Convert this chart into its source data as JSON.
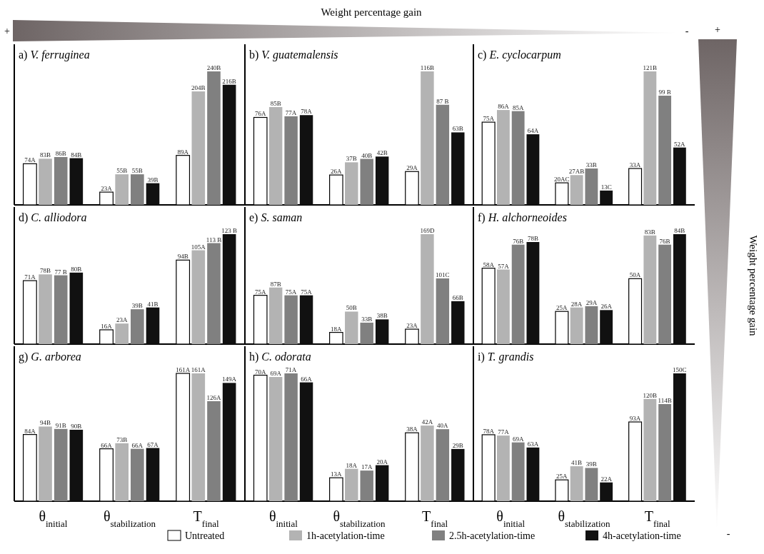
{
  "chart_data": [
    {
      "type": "bar",
      "title": "a) V. ferruginea",
      "categories": [
        null,
        null,
        null
      ],
      "tick_labels": false,
      "legend": "bottom",
      "annotations": [
        "+",
        "Weight percentage gain",
        "-",
        "+",
        "Weight percentage gain",
        "-"
      ],
      "series": [
        {
          "name": "Untreated",
          "color": "#ffffff",
          "values": [
            74,
            23,
            89
          ],
          "value_labels": [
            "74A",
            "23A",
            "89A"
          ]
        },
        {
          "name": "1h-acetylation-time",
          "color": "#b3b3b3",
          "values": [
            83,
            55,
            204
          ],
          "value_labels": [
            "83B",
            "55B",
            "204B"
          ]
        },
        {
          "name": "2.5h-acetylation-time",
          "color": "#808080",
          "values": [
            86,
            55,
            240
          ],
          "value_labels": [
            "86B",
            "55B",
            "240B"
          ]
        },
        {
          "name": "4h-acetylation-time",
          "color": "#111111",
          "values": [
            84,
            39,
            216
          ],
          "value_labels": [
            "84B",
            "39B",
            "216B"
          ]
        }
      ]
    },
    {
      "type": "bar",
      "title": "b) V. guatemalensis",
      "categories": [
        null,
        null,
        null
      ],
      "tick_labels": false,
      "series": [
        {
          "color": "#ffffff",
          "values": [
            76,
            26,
            29
          ],
          "value_labels": [
            "76A",
            "26A",
            "29A"
          ]
        },
        {
          "color": "#b3b3b3",
          "values": [
            85,
            37,
            116
          ],
          "value_labels": [
            "85B",
            "37B",
            "116B"
          ]
        },
        {
          "color": "#808080",
          "values": [
            77,
            40,
            87
          ],
          "value_labels": [
            "77A",
            "40B",
            "87 B"
          ]
        },
        {
          "color": "#111111",
          "values": [
            78,
            42,
            63
          ],
          "value_labels": [
            "78A",
            "42B",
            "63B"
          ]
        }
      ]
    },
    {
      "type": "bar",
      "title": "c) E. cyclocarpum",
      "categories": [
        null,
        null,
        null
      ],
      "tick_labels": false,
      "series": [
        {
          "color": "#ffffff",
          "values": [
            75,
            20,
            33
          ],
          "value_labels": [
            "75A",
            "20AC",
            "33A"
          ]
        },
        {
          "color": "#b3b3b3",
          "values": [
            86,
            27,
            121
          ],
          "value_labels": [
            "86A",
            "27AB",
            "121B"
          ]
        },
        {
          "color": "#808080",
          "values": [
            85,
            33,
            99
          ],
          "value_labels": [
            "85A",
            "33B",
            "99 B"
          ]
        },
        {
          "color": "#111111",
          "values": [
            64,
            13,
            52
          ],
          "value_labels": [
            "64A",
            "13C",
            "52A"
          ]
        }
      ]
    },
    {
      "type": "bar",
      "title": "d) C. alliodora",
      "categories": [
        null,
        null,
        null
      ],
      "tick_labels": false,
      "series": [
        {
          "color": "#ffffff",
          "values": [
            71,
            16,
            94
          ],
          "value_labels": [
            "71A",
            "16A",
            "94B"
          ]
        },
        {
          "color": "#b3b3b3",
          "values": [
            78,
            23,
            105
          ],
          "value_labels": [
            "78B",
            "23A",
            "105A"
          ]
        },
        {
          "color": "#808080",
          "values": [
            77,
            39,
            113
          ],
          "value_labels": [
            "77 B",
            "39B",
            "113 B"
          ]
        },
        {
          "color": "#111111",
          "values": [
            80,
            41,
            123
          ],
          "value_labels": [
            "80B",
            "41B",
            "123 B"
          ]
        }
      ]
    },
    {
      "type": "bar",
      "title": "e) S. saman",
      "categories": [
        null,
        null,
        null
      ],
      "tick_labels": false,
      "series": [
        {
          "color": "#ffffff",
          "values": [
            75,
            18,
            23
          ],
          "value_labels": [
            "75A",
            "18A",
            "23A"
          ]
        },
        {
          "color": "#b3b3b3",
          "values": [
            87,
            50,
            169
          ],
          "value_labels": [
            "87B",
            "50B",
            "169D"
          ]
        },
        {
          "color": "#808080",
          "values": [
            75,
            33,
            101
          ],
          "value_labels": [
            "75A",
            "33B",
            "101C"
          ]
        },
        {
          "color": "#111111",
          "values": [
            75,
            38,
            66
          ],
          "value_labels": [
            "75A",
            "38B",
            "66B"
          ]
        }
      ]
    },
    {
      "type": "bar",
      "title": "f) H. alchorneoides",
      "categories": [
        null,
        null,
        null
      ],
      "tick_labels": false,
      "series": [
        {
          "color": "#ffffff",
          "values": [
            58,
            25,
            50
          ],
          "value_labels": [
            "58A",
            "25A",
            "50A"
          ]
        },
        {
          "color": "#b3b3b3",
          "values": [
            57,
            28,
            83
          ],
          "value_labels": [
            "57A",
            "28A",
            "83B"
          ]
        },
        {
          "color": "#808080",
          "values": [
            76,
            29,
            76
          ],
          "value_labels": [
            "76B",
            "29A",
            "76B"
          ]
        },
        {
          "color": "#111111",
          "values": [
            78,
            26,
            84
          ],
          "value_labels": [
            "78B",
            "26A",
            "84B"
          ]
        }
      ]
    },
    {
      "type": "bar",
      "title": "g) G. arborea",
      "categories": [
        "θ$_{initial}$",
        "θ$_{stabilization}$",
        "T$_{final}$"
      ],
      "tick_labels": "x",
      "series": [
        {
          "color": "#ffffff",
          "values": [
            84,
            66,
            161
          ],
          "value_labels": [
            "84A",
            "66A",
            "161A"
          ]
        },
        {
          "color": "#b3b3b3",
          "values": [
            94,
            73,
            161
          ],
          "value_labels": [
            "94B",
            "73B",
            "161A"
          ]
        },
        {
          "color": "#808080",
          "values": [
            91,
            66,
            126
          ],
          "value_labels": [
            "91B",
            "66A",
            "126A"
          ]
        },
        {
          "color": "#111111",
          "values": [
            90,
            67,
            149
          ],
          "value_labels": [
            "90B",
            "67A",
            "149A"
          ]
        }
      ]
    },
    {
      "type": "bar",
      "title": "h) C. odorata",
      "categories": [
        "θ$_{initial}$",
        "θ$_{stabilization}$",
        "T$_{final}$"
      ],
      "tick_labels": "x",
      "series": [
        {
          "color": "#ffffff",
          "values": [
            70,
            13,
            38
          ],
          "value_labels": [
            "70A",
            "13A",
            "38A"
          ]
        },
        {
          "color": "#b3b3b3",
          "values": [
            69,
            18,
            42
          ],
          "value_labels": [
            "69A",
            "18A",
            "42A"
          ]
        },
        {
          "color": "#808080",
          "values": [
            71,
            17,
            40
          ],
          "value_labels": [
            "71A",
            "17A",
            "40A"
          ]
        },
        {
          "color": "#111111",
          "values": [
            66,
            20,
            29
          ],
          "value_labels": [
            "66A",
            "20A",
            "29B"
          ]
        }
      ]
    },
    {
      "type": "bar",
      "title": "i) T. grandis",
      "categories": [
        "θ$_{initial}$",
        "θ$_{stabilization}$",
        "T$_{final}$"
      ],
      "tick_labels": "x",
      "series": [
        {
          "color": "#ffffff",
          "values": [
            78,
            25,
            93
          ],
          "value_labels": [
            "78A",
            "25A",
            "93A"
          ]
        },
        {
          "color": "#b3b3b3",
          "values": [
            77,
            41,
            120
          ],
          "value_labels": [
            "77A",
            "41B",
            "120B"
          ]
        },
        {
          "color": "#808080",
          "values": [
            69,
            39,
            114
          ],
          "value_labels": [
            "69A",
            "39B",
            "114B"
          ]
        },
        {
          "color": "#111111",
          "values": [
            63,
            22,
            150
          ],
          "value_labels": [
            "63A",
            "22A",
            "150C"
          ]
        }
      ]
    }
  ]
}
